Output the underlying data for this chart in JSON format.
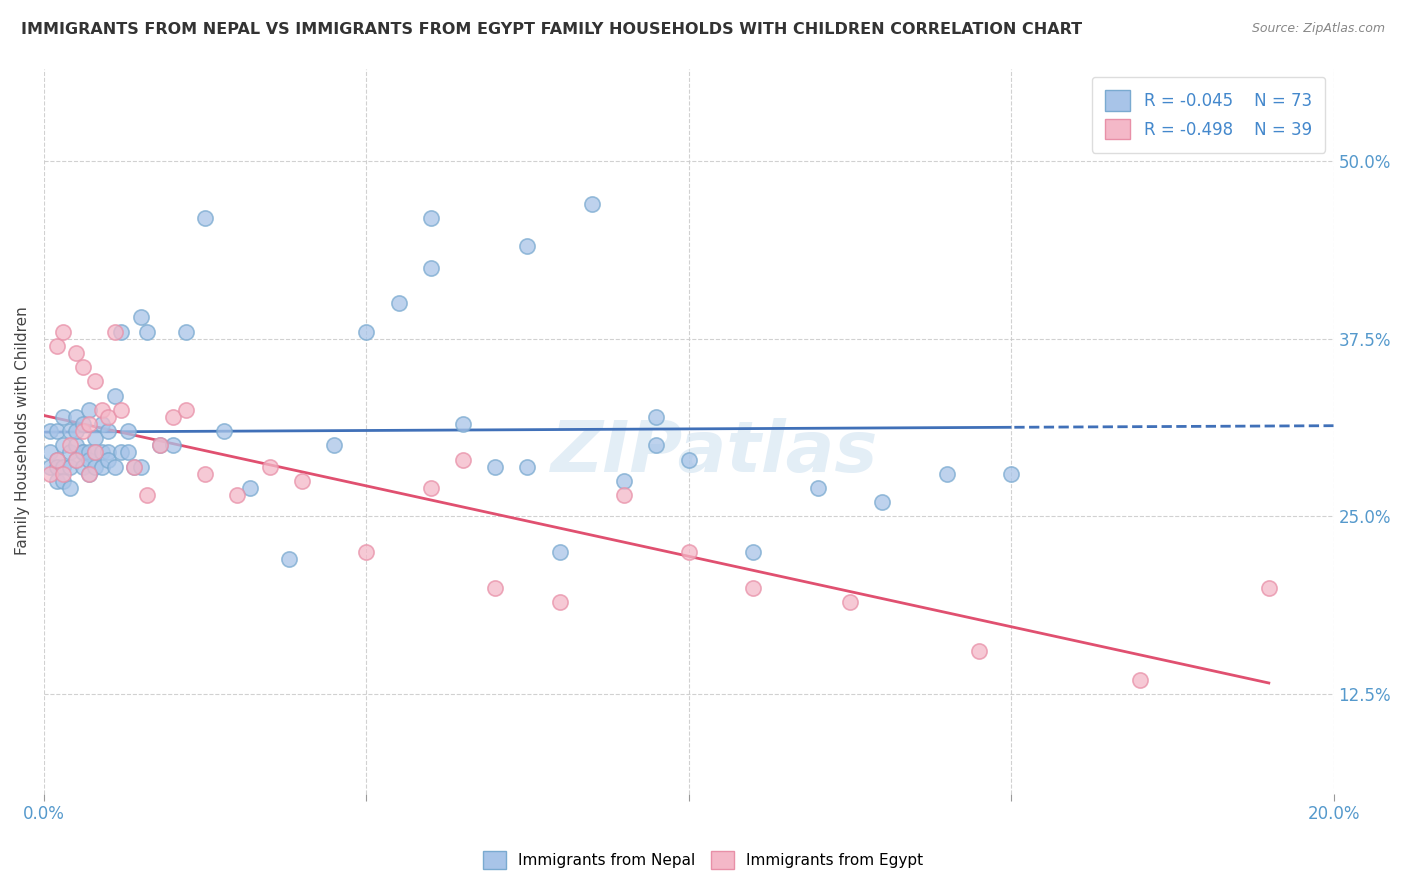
{
  "title": "IMMIGRANTS FROM NEPAL VS IMMIGRANTS FROM EGYPT FAMILY HOUSEHOLDS WITH CHILDREN CORRELATION CHART",
  "source": "Source: ZipAtlas.com",
  "ylabel": "Family Households with Children",
  "ytick_labels": [
    "12.5%",
    "25.0%",
    "37.5%",
    "50.0%"
  ],
  "ytick_values": [
    0.125,
    0.25,
    0.375,
    0.5
  ],
  "xlim": [
    0.0,
    0.2
  ],
  "ylim": [
    0.055,
    0.565
  ],
  "nepal_R": "-0.045",
  "nepal_N": "73",
  "egypt_R": "-0.498",
  "egypt_N": "39",
  "nepal_color": "#a8c4e8",
  "egypt_color": "#f4b8c8",
  "nepal_edge_color": "#7aaad0",
  "egypt_edge_color": "#e890a8",
  "nepal_trend_color": "#4070b8",
  "egypt_trend_color": "#e05070",
  "legend_label_1": "Immigrants from Nepal",
  "legend_label_2": "Immigrants from Egypt",
  "nepal_scatter_x": [
    0.001,
    0.001,
    0.001,
    0.002,
    0.002,
    0.002,
    0.002,
    0.003,
    0.003,
    0.003,
    0.003,
    0.004,
    0.004,
    0.004,
    0.004,
    0.005,
    0.005,
    0.005,
    0.005,
    0.006,
    0.006,
    0.006,
    0.006,
    0.007,
    0.007,
    0.007,
    0.007,
    0.008,
    0.008,
    0.008,
    0.009,
    0.009,
    0.009,
    0.01,
    0.01,
    0.01,
    0.011,
    0.011,
    0.012,
    0.012,
    0.013,
    0.013,
    0.014,
    0.015,
    0.015,
    0.016,
    0.018,
    0.02,
    0.022,
    0.025,
    0.028,
    0.032,
    0.038,
    0.045,
    0.05,
    0.055,
    0.06,
    0.065,
    0.07,
    0.075,
    0.08,
    0.09,
    0.095,
    0.1,
    0.11,
    0.12,
    0.13,
    0.14,
    0.06,
    0.075,
    0.085,
    0.095,
    0.15
  ],
  "nepal_scatter_y": [
    0.295,
    0.285,
    0.31,
    0.29,
    0.31,
    0.285,
    0.275,
    0.3,
    0.285,
    0.32,
    0.275,
    0.295,
    0.31,
    0.285,
    0.27,
    0.3,
    0.29,
    0.32,
    0.31,
    0.295,
    0.285,
    0.315,
    0.295,
    0.325,
    0.295,
    0.29,
    0.28,
    0.305,
    0.295,
    0.285,
    0.315,
    0.295,
    0.285,
    0.31,
    0.295,
    0.29,
    0.335,
    0.285,
    0.38,
    0.295,
    0.295,
    0.31,
    0.285,
    0.39,
    0.285,
    0.38,
    0.3,
    0.3,
    0.38,
    0.46,
    0.31,
    0.27,
    0.22,
    0.3,
    0.38,
    0.4,
    0.46,
    0.315,
    0.285,
    0.285,
    0.225,
    0.275,
    0.32,
    0.29,
    0.225,
    0.27,
    0.26,
    0.28,
    0.425,
    0.44,
    0.47,
    0.3,
    0.28
  ],
  "egypt_scatter_x": [
    0.001,
    0.002,
    0.002,
    0.003,
    0.003,
    0.004,
    0.005,
    0.005,
    0.006,
    0.006,
    0.007,
    0.007,
    0.008,
    0.008,
    0.009,
    0.01,
    0.011,
    0.012,
    0.014,
    0.016,
    0.018,
    0.02,
    0.022,
    0.025,
    0.03,
    0.035,
    0.04,
    0.05,
    0.06,
    0.065,
    0.07,
    0.08,
    0.09,
    0.1,
    0.11,
    0.125,
    0.145,
    0.17,
    0.19
  ],
  "egypt_scatter_y": [
    0.28,
    0.37,
    0.29,
    0.28,
    0.38,
    0.3,
    0.29,
    0.365,
    0.355,
    0.31,
    0.315,
    0.28,
    0.345,
    0.295,
    0.325,
    0.32,
    0.38,
    0.325,
    0.285,
    0.265,
    0.3,
    0.32,
    0.325,
    0.28,
    0.265,
    0.285,
    0.275,
    0.225,
    0.27,
    0.29,
    0.2,
    0.19,
    0.265,
    0.225,
    0.2,
    0.19,
    0.155,
    0.135,
    0.2
  ]
}
